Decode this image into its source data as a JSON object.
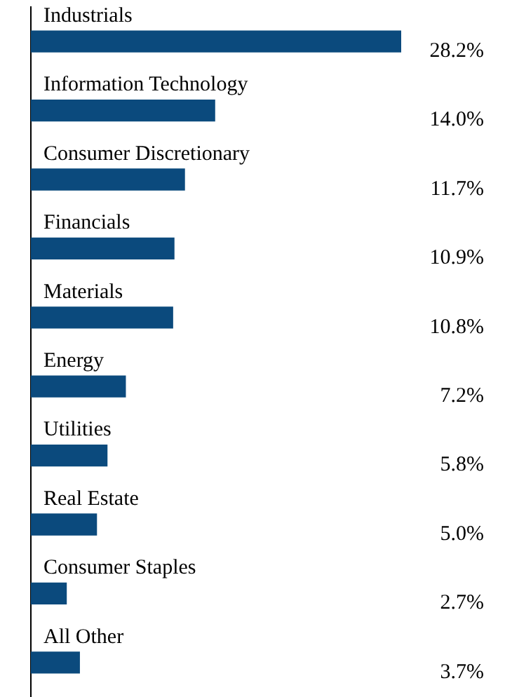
{
  "chart_data": {
    "type": "bar",
    "orientation": "horizontal",
    "categories": [
      "Industrials",
      "Information Technology",
      "Consumer Discretionary",
      "Financials",
      "Materials",
      "Energy",
      "Utilities",
      "Real Estate",
      "Consumer Staples",
      "All Other"
    ],
    "values": [
      28.2,
      14.0,
      11.7,
      10.9,
      10.8,
      7.2,
      5.8,
      5.0,
      2.7,
      3.7
    ],
    "value_labels": [
      "28.2%",
      "14.0%",
      "11.7%",
      "10.9%",
      "10.8%",
      "7.2%",
      "5.8%",
      "5.0%",
      "2.7%",
      "3.7%"
    ],
    "color": "#0b4a7d",
    "grid": false,
    "legend": false
  }
}
